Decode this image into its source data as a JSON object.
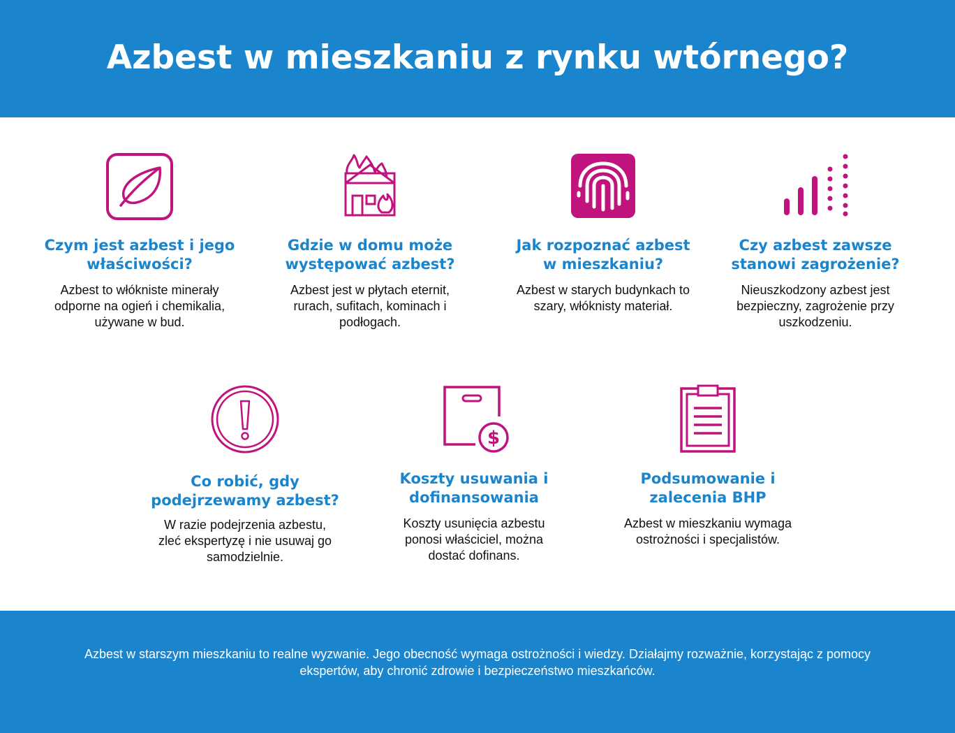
{
  "header": {
    "title": "Azbest w mieszkaniu z rynku wtórnego?"
  },
  "cards": [
    {
      "icon": "leaf-icon",
      "title": "Czym jest azbest i jego\nwłaściwości?",
      "text": "Azbest to włókniste minerały\nodporne na ogień i chemikalia,\nużywane w bud."
    },
    {
      "icon": "burning-house-icon",
      "title": "Gdzie w domu może\nwystępować azbest?",
      "text": "Azbest jest w płytach eternit,\nrurach, sufitach, kominach i\npodłogach."
    },
    {
      "icon": "fingerprint-icon",
      "title": "Jak rozpoznać azbest\nw mieszkaniu?",
      "text": "Azbest w starych budynkach to\nszary, włóknisty materiał."
    },
    {
      "icon": "signal-bars-icon",
      "title": "Czy azbest zawsze\nstanowi zagrożenie?",
      "text": "Nieuszkodzony azbest jest\nbezpieczny, zagrożenie przy\nuszkodzeniu."
    },
    {
      "icon": "exclamation-circle-icon",
      "title": "Co robić, gdy\npodejrzewamy azbest?",
      "text": "W razie podejrzenia azbestu,\nzleć ekspertyzę i nie usuwaj go\nsamodzielnie."
    },
    {
      "icon": "bag-dollar-icon",
      "title": "Koszty usuwania i\ndofinansowania",
      "text": "Koszty usunięcia azbestu\nponosi właściciel, można\ndostać dofinans."
    },
    {
      "icon": "clipboard-icon",
      "title": "Podsumowanie i\nzalecenia BHP",
      "text": "Azbest w mieszkaniu wymaga\nostrożności i specjalistów."
    }
  ],
  "footer": {
    "text": "Azbest w starszym mieszkaniu to realne wyzwanie. Jego obecność wymaga ostrożności i wiedzy. Działajmy rozważnie, korzystając z pomocy ekspertów, aby chronić zdrowie i bezpieczeństwo mieszkańców."
  },
  "colors": {
    "accent_blue": "#1a85cc",
    "icon_magenta": "#c0137e"
  }
}
